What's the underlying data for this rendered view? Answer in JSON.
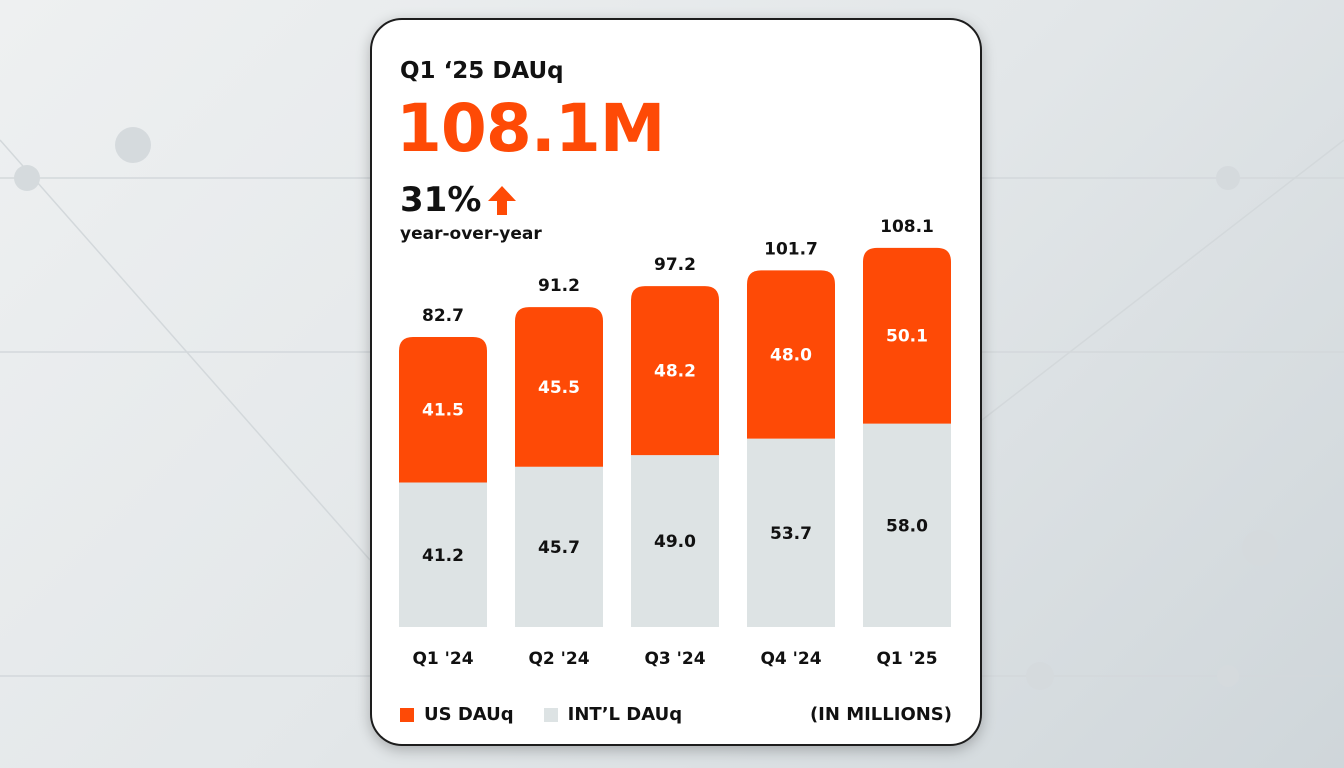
{
  "header": {
    "title": "Q1 ‘25 DAUq",
    "headline_value": "108.1M",
    "growth": "31%",
    "growth_icon": "arrow-up-icon",
    "growth_label": "year-over-year"
  },
  "colors": {
    "us": "#fe4a06",
    "intl": "#dde3e4"
  },
  "chart_data": {
    "type": "stacked-bar",
    "categories": [
      "Q1 '24",
      "Q2 '24",
      "Q3 '24",
      "Q4 '24",
      "Q1 '25"
    ],
    "series": [
      {
        "name": "INT'L DAUq",
        "values": [
          41.2,
          45.7,
          49.0,
          53.7,
          58.0
        ]
      },
      {
        "name": "US DAUq",
        "values": [
          41.5,
          45.5,
          48.2,
          48.0,
          50.1
        ]
      }
    ],
    "totals": [
      82.7,
      91.2,
      97.2,
      101.7,
      108.1
    ],
    "series_labels": [
      [
        "41.2",
        "45.7",
        "49.0",
        "53.7",
        "58.0"
      ],
      [
        "41.5",
        "45.5",
        "48.2",
        "48.0",
        "50.1"
      ]
    ],
    "total_labels": [
      "82.7",
      "91.2",
      "97.2",
      "101.7",
      "108.1"
    ],
    "unit_note": "(IN MILLIONS)",
    "legend": "bottom-left",
    "grid": false
  },
  "legend": {
    "us": "US DAUq",
    "intl": "INT’L DAUq",
    "unit": "(IN MILLIONS)"
  }
}
